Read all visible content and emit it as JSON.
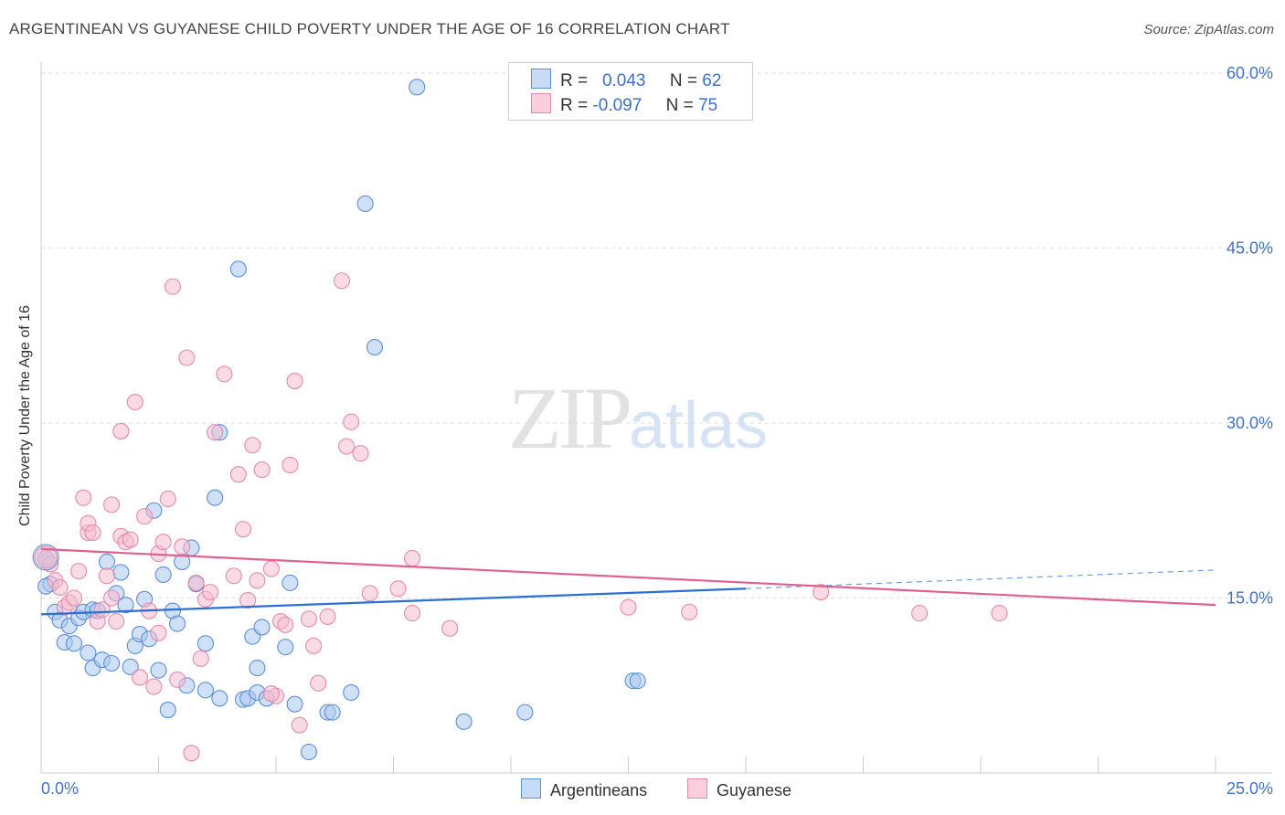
{
  "header": {
    "title": "ARGENTINEAN VS GUYANESE CHILD POVERTY UNDER THE AGE OF 16 CORRELATION CHART",
    "source": "Source: ZipAtlas.com"
  },
  "watermark": {
    "zip": "ZIP",
    "atlas": "atlas"
  },
  "legend": {
    "argentineans": {
      "r_label": "R =",
      "r_value": "0.043",
      "n_label": "N =",
      "n_value": "62"
    },
    "guyanese": {
      "r_label": "R =",
      "r_value": "-0.097",
      "n_label": "N =",
      "n_value": "75"
    }
  },
  "colors": {
    "argentineans_fill": "#a9c6f0",
    "argentineans_stroke": "#5b8fd6",
    "argentineans_line": "#2a6fd1",
    "guyanese_fill": "#f6bcd0",
    "guyanese_stroke": "#e58aaa",
    "guyanese_line": "#e0608f",
    "tick_label": "#4472c4",
    "grid": "#dddddd"
  },
  "chart_data": {
    "type": "scatter",
    "title": "ARGENTINEAN VS GUYANESE CHILD POVERTY UNDER THE AGE OF 16 CORRELATION CHART",
    "xlabel": "",
    "ylabel": "Child Poverty Under the Age of 16",
    "xlim": [
      0,
      25
    ],
    "ylim": [
      0,
      60
    ],
    "x_tick_labels": [
      "0.0%",
      "25.0%"
    ],
    "y_ticks": [
      15,
      30,
      45,
      60
    ],
    "y_tick_labels": [
      "15.0%",
      "30.0%",
      "45.0%",
      "60.0%"
    ],
    "legend_position": "top-center",
    "series": [
      {
        "name": "Argentineans",
        "trend": {
          "x0": 0,
          "y0": 13.6,
          "x1": 15,
          "y1": 15.8,
          "dash_to_x": 25,
          "dash_to_y": 17.4
        },
        "points": [
          [
            0.1,
            18.4
          ],
          [
            0.2,
            16.2
          ],
          [
            0.3,
            13.8
          ],
          [
            0.4,
            13.1
          ],
          [
            0.5,
            11.2
          ],
          [
            0.6,
            12.6
          ],
          [
            0.7,
            11.1
          ],
          [
            0.8,
            13.3
          ],
          [
            0.9,
            13.8
          ],
          [
            1.0,
            10.3
          ],
          [
            1.1,
            14.0
          ],
          [
            1.1,
            9.0
          ],
          [
            1.2,
            13.9
          ],
          [
            1.3,
            9.7
          ],
          [
            1.4,
            18.1
          ],
          [
            1.5,
            9.4
          ],
          [
            1.6,
            15.4
          ],
          [
            1.7,
            17.2
          ],
          [
            1.8,
            14.4
          ],
          [
            1.9,
            9.1
          ],
          [
            2.0,
            10.9
          ],
          [
            2.1,
            11.9
          ],
          [
            2.2,
            14.9
          ],
          [
            2.3,
            11.5
          ],
          [
            2.4,
            22.5
          ],
          [
            2.5,
            8.8
          ],
          [
            2.6,
            17.0
          ],
          [
            2.7,
            5.4
          ],
          [
            2.8,
            13.9
          ],
          [
            2.9,
            12.8
          ],
          [
            3.0,
            18.1
          ],
          [
            3.1,
            7.5
          ],
          [
            3.2,
            19.3
          ],
          [
            3.3,
            16.2
          ],
          [
            3.5,
            7.1
          ],
          [
            3.5,
            11.1
          ],
          [
            3.7,
            23.6
          ],
          [
            3.8,
            6.4
          ],
          [
            3.8,
            29.2
          ],
          [
            4.2,
            43.2
          ],
          [
            4.3,
            6.3
          ],
          [
            4.4,
            6.4
          ],
          [
            4.5,
            11.7
          ],
          [
            4.6,
            6.9
          ],
          [
            4.6,
            9.0
          ],
          [
            4.7,
            12.5
          ],
          [
            4.8,
            6.4
          ],
          [
            5.2,
            10.8
          ],
          [
            5.3,
            16.3
          ],
          [
            5.4,
            5.9
          ],
          [
            5.7,
            1.8
          ],
          [
            6.1,
            5.2
          ],
          [
            6.2,
            5.2
          ],
          [
            6.6,
            6.9
          ],
          [
            6.9,
            48.8
          ],
          [
            7.1,
            36.5
          ],
          [
            8.0,
            58.8
          ],
          [
            9.0,
            4.4
          ],
          [
            10.3,
            5.2
          ],
          [
            12.6,
            7.9
          ],
          [
            12.7,
            7.9
          ],
          [
            0.1,
            16.0
          ]
        ]
      },
      {
        "name": "Guyanese",
        "trend": {
          "x0": 0,
          "y0": 19.2,
          "x1": 25,
          "y1": 14.4
        },
        "points": [
          [
            0.1,
            18.4
          ],
          [
            0.2,
            17.9
          ],
          [
            0.3,
            16.5
          ],
          [
            0.4,
            15.9
          ],
          [
            0.5,
            14.2
          ],
          [
            0.6,
            14.6
          ],
          [
            0.7,
            15.0
          ],
          [
            0.8,
            17.3
          ],
          [
            0.9,
            23.6
          ],
          [
            1.0,
            20.6
          ],
          [
            1.0,
            21.4
          ],
          [
            1.1,
            20.6
          ],
          [
            1.2,
            13.0
          ],
          [
            1.3,
            14.0
          ],
          [
            1.4,
            16.9
          ],
          [
            1.5,
            15.0
          ],
          [
            1.5,
            23.0
          ],
          [
            1.6,
            13.0
          ],
          [
            1.7,
            20.3
          ],
          [
            1.7,
            29.3
          ],
          [
            1.8,
            19.8
          ],
          [
            1.9,
            20.0
          ],
          [
            2.0,
            31.8
          ],
          [
            2.1,
            8.2
          ],
          [
            2.2,
            22.0
          ],
          [
            2.3,
            13.9
          ],
          [
            2.4,
            7.4
          ],
          [
            2.5,
            12.0
          ],
          [
            2.5,
            18.8
          ],
          [
            2.6,
            19.8
          ],
          [
            2.7,
            23.5
          ],
          [
            2.8,
            41.7
          ],
          [
            2.9,
            8.0
          ],
          [
            3.0,
            19.4
          ],
          [
            3.1,
            35.6
          ],
          [
            3.2,
            1.7
          ],
          [
            3.3,
            16.3
          ],
          [
            3.4,
            9.8
          ],
          [
            3.5,
            14.9
          ],
          [
            3.6,
            15.5
          ],
          [
            3.7,
            29.2
          ],
          [
            3.9,
            34.2
          ],
          [
            4.1,
            16.9
          ],
          [
            4.2,
            25.6
          ],
          [
            4.3,
            20.9
          ],
          [
            4.4,
            14.8
          ],
          [
            4.5,
            28.1
          ],
          [
            4.6,
            16.5
          ],
          [
            4.7,
            26.0
          ],
          [
            4.9,
            17.5
          ],
          [
            5.0,
            6.6
          ],
          [
            5.1,
            13.0
          ],
          [
            5.2,
            12.7
          ],
          [
            5.3,
            26.4
          ],
          [
            5.4,
            33.6
          ],
          [
            5.5,
            4.1
          ],
          [
            5.7,
            13.2
          ],
          [
            5.8,
            10.9
          ],
          [
            5.9,
            7.7
          ],
          [
            6.1,
            13.4
          ],
          [
            6.4,
            42.2
          ],
          [
            6.5,
            28.0
          ],
          [
            6.6,
            30.1
          ],
          [
            6.8,
            27.4
          ],
          [
            7.0,
            15.4
          ],
          [
            7.6,
            15.8
          ],
          [
            7.9,
            13.7
          ],
          [
            7.9,
            18.4
          ],
          [
            8.7,
            12.4
          ],
          [
            12.5,
            14.2
          ],
          [
            13.8,
            13.8
          ],
          [
            16.6,
            15.5
          ],
          [
            18.7,
            13.7
          ],
          [
            20.4,
            13.7
          ],
          [
            4.9,
            6.8
          ]
        ]
      }
    ],
    "bottom_legend": [
      "Argentineans",
      "Guyanese"
    ]
  }
}
